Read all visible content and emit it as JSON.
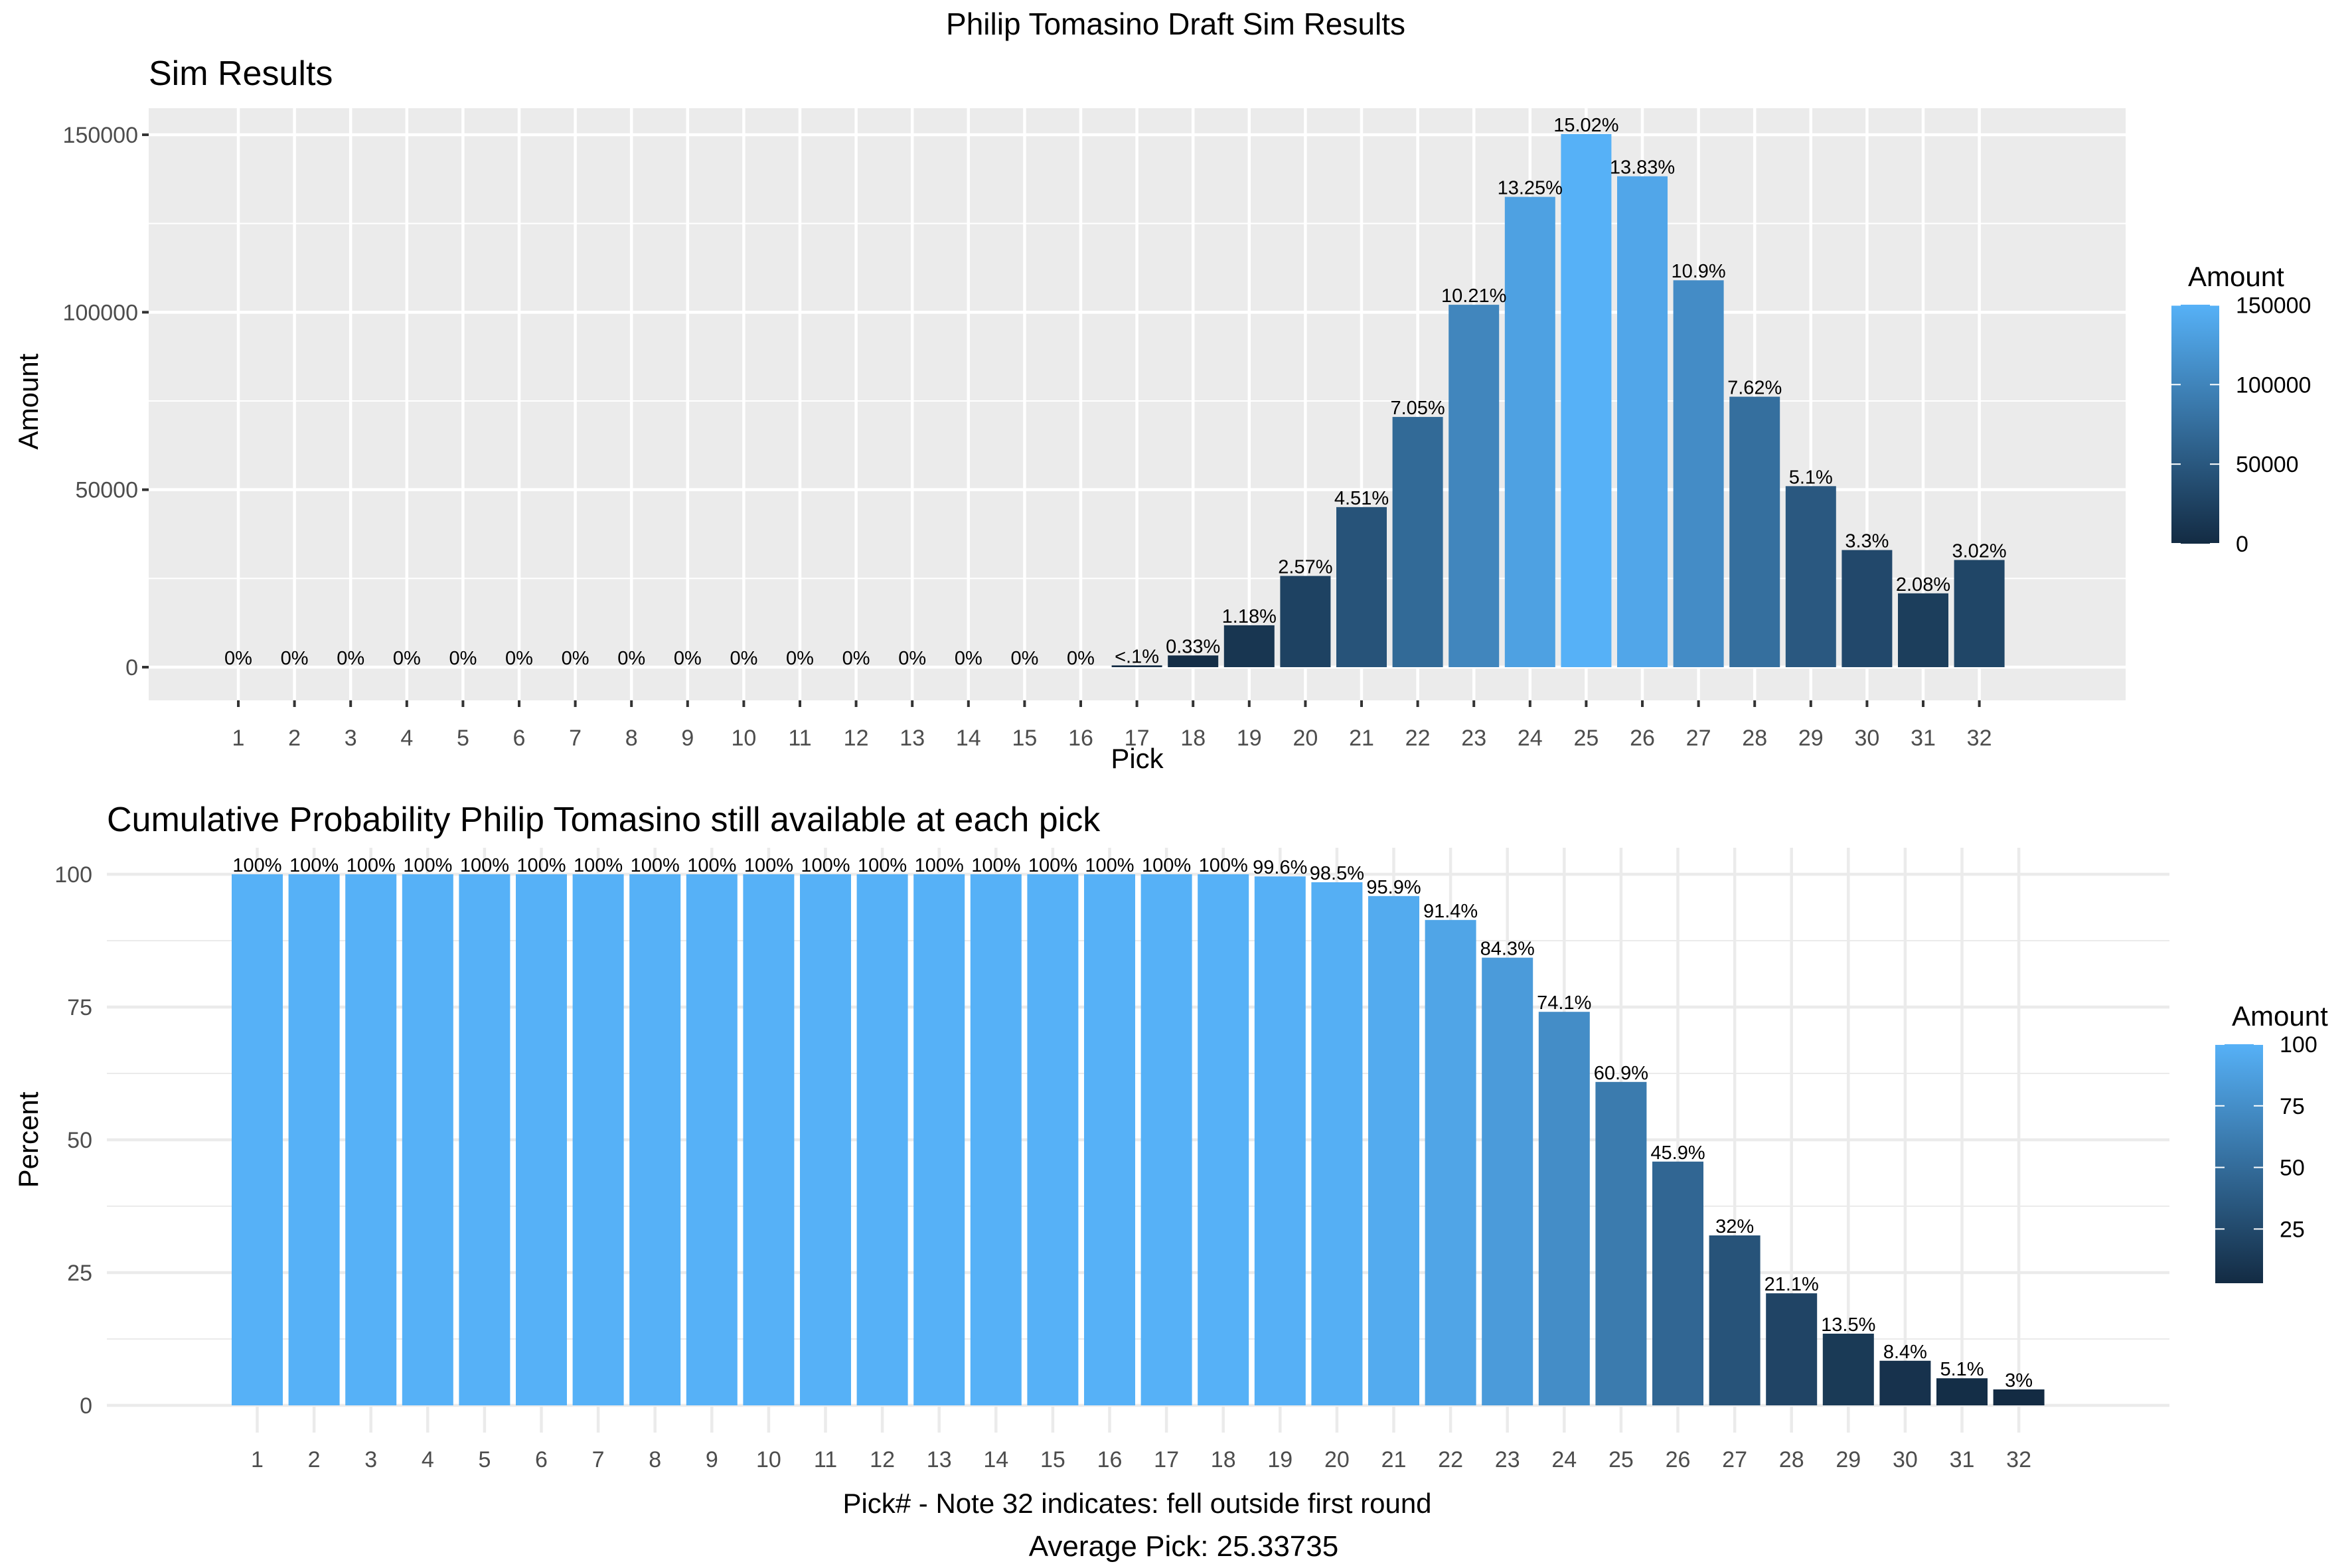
{
  "title": "Philip Tomasino Draft Sim Results",
  "footer": "Average Pick: 25.33735",
  "colors": {
    "low": "#132B43",
    "high": "#56B1F7",
    "panel_bg": "#EBEBEB",
    "grid_on_grey": "#FFFFFF",
    "grid_on_white": "#EBEBEB",
    "tick_text": "#4D4D4D"
  },
  "chart_data": [
    {
      "type": "bar",
      "title": "Sim Results",
      "xlabel": "Pick",
      "ylabel": "Amount",
      "categories": [
        "1",
        "2",
        "3",
        "4",
        "5",
        "6",
        "7",
        "8",
        "9",
        "10",
        "11",
        "12",
        "13",
        "14",
        "15",
        "16",
        "17",
        "18",
        "19",
        "20",
        "21",
        "22",
        "23",
        "24",
        "25",
        "26",
        "27",
        "28",
        "29",
        "30",
        "31",
        "32"
      ],
      "values": [
        0,
        0,
        0,
        0,
        0,
        0,
        0,
        0,
        0,
        0,
        0,
        0,
        0,
        0,
        0,
        0,
        500,
        3300,
        11800,
        25700,
        45100,
        70500,
        102100,
        132500,
        150200,
        138300,
        109000,
        76200,
        51000,
        33000,
        20800,
        30200
      ],
      "data_labels": [
        "0%",
        "0%",
        "0%",
        "0%",
        "0%",
        "0%",
        "0%",
        "0%",
        "0%",
        "0%",
        "0%",
        "0%",
        "0%",
        "0%",
        "0%",
        "0%",
        "<.1%",
        "0.33%",
        "1.18%",
        "2.57%",
        "4.51%",
        "7.05%",
        "10.21%",
        "13.25%",
        "15.02%",
        "13.83%",
        "10.9%",
        "7.62%",
        "5.1%",
        "3.3%",
        "2.08%",
        "3.02%"
      ],
      "ylim": [
        0,
        150000
      ],
      "yticks": [
        0,
        50000,
        100000,
        150000
      ],
      "ytick_labels": [
        "0",
        "50000",
        "100000",
        "150000"
      ],
      "grid": true,
      "legend": {
        "title": "Amount",
        "position": "right",
        "type": "colorbar",
        "range": [
          0,
          150200
        ],
        "breaks": [
          0,
          50000,
          100000,
          150000
        ],
        "labels": [
          "0",
          "50000",
          "100000",
          "150000"
        ]
      }
    },
    {
      "type": "bar",
      "title": "Cumulative Probability Philip Tomasino still available at each pick",
      "xlabel": "Pick# - Note 32 indicates: fell outside first round",
      "ylabel": "Percent",
      "categories": [
        "1",
        "2",
        "3",
        "4",
        "5",
        "6",
        "7",
        "8",
        "9",
        "10",
        "11",
        "12",
        "13",
        "14",
        "15",
        "16",
        "17",
        "18",
        "19",
        "20",
        "21",
        "22",
        "23",
        "24",
        "25",
        "26",
        "27",
        "28",
        "29",
        "30",
        "31",
        "32"
      ],
      "values": [
        100,
        100,
        100,
        100,
        100,
        100,
        100,
        100,
        100,
        100,
        100,
        100,
        100,
        100,
        100,
        100,
        100,
        100,
        99.6,
        98.5,
        95.9,
        91.4,
        84.3,
        74.1,
        60.9,
        45.9,
        32,
        21.1,
        13.5,
        8.4,
        5.1,
        3
      ],
      "data_labels": [
        "100%",
        "100%",
        "100%",
        "100%",
        "100%",
        "100%",
        "100%",
        "100%",
        "100%",
        "100%",
        "100%",
        "100%",
        "100%",
        "100%",
        "100%",
        "100%",
        "100%",
        "100%",
        "99.6%",
        "98.5%",
        "95.9%",
        "91.4%",
        "84.3%",
        "74.1%",
        "60.9%",
        "45.9%",
        "32%",
        "21.1%",
        "13.5%",
        "8.4%",
        "5.1%",
        "3%"
      ],
      "ylim": [
        0,
        100
      ],
      "yticks": [
        0,
        25,
        50,
        75,
        100
      ],
      "ytick_labels": [
        "0",
        "25",
        "50",
        "75",
        "100"
      ],
      "grid": true,
      "legend": {
        "title": "Amount",
        "position": "right",
        "type": "colorbar",
        "range": [
          3,
          100
        ],
        "breaks": [
          25,
          50,
          75,
          100
        ],
        "labels": [
          "25",
          "50",
          "75",
          "100"
        ]
      }
    }
  ]
}
